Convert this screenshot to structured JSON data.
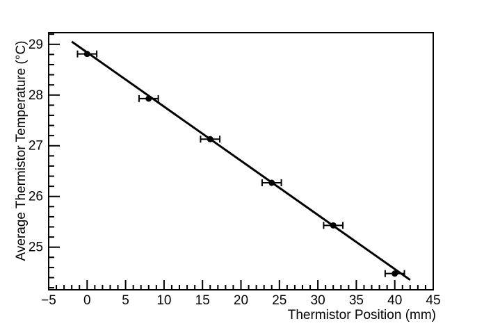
{
  "chart_data": {
    "type": "scatter",
    "title": "",
    "xlabel": "Thermistor Position (mm)",
    "ylabel": "Average Thermistor Temperature (°C)",
    "xlim": [
      -5,
      45
    ],
    "ylim": [
      24.16,
      29.23
    ],
    "x_major_step": 5,
    "x_minor_step": 1,
    "y_major_step": 1,
    "y_minor_step": 0.2,
    "x_major_tick_labels": [
      "−5",
      "0",
      "5",
      "10",
      "15",
      "20",
      "25",
      "30",
      "35",
      "40",
      "45"
    ],
    "y_major_tick_labels": [
      "25",
      "26",
      "27",
      "28",
      "29"
    ],
    "grid": false,
    "legend": false,
    "points": [
      {
        "x": 0,
        "y": 28.81,
        "xerr": 1.25
      },
      {
        "x": 8,
        "y": 27.93,
        "xerr": 1.25
      },
      {
        "x": 16,
        "y": 27.13,
        "xerr": 1.25
      },
      {
        "x": 24,
        "y": 26.27,
        "xerr": 1.25
      },
      {
        "x": 32,
        "y": 25.43,
        "xerr": 1.25
      },
      {
        "x": 40,
        "y": 24.48,
        "xerr": 1.25
      }
    ],
    "fit_line": {
      "slope": -0.1068,
      "intercept": 28.84,
      "x_start": -2.0,
      "x_end": 42.0
    },
    "colors": {
      "marker": "#000000",
      "fit_line": "#000000",
      "axis": "#000000",
      "background": "#ffffff"
    }
  }
}
